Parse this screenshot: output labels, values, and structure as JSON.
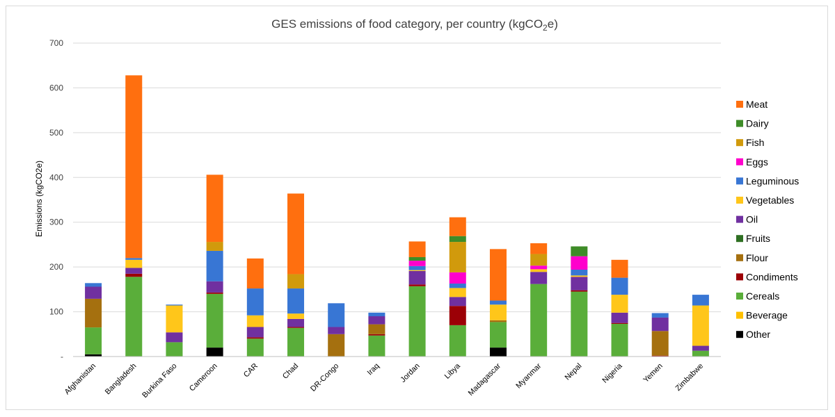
{
  "chart_data": {
    "type": "bar",
    "stacked": true,
    "title": "GES emissions of food category, per country (kgCO",
    "title_sub": "2",
    "title_end": "e)",
    "ylabel": "Emissions (kgCO2e)",
    "xlabel": "",
    "ylim": [
      0,
      700
    ],
    "yticks": [
      0,
      100,
      200,
      300,
      400,
      500,
      600,
      700
    ],
    "ytick_labels": [
      "-",
      "100",
      "200",
      "300",
      "400",
      "500",
      "600",
      "700"
    ],
    "grid": true,
    "legend_position": "right",
    "categories": [
      "Afghanistan",
      "Bangladesh",
      "Burkina Faso",
      "Cameroon",
      "CAR",
      "Chad",
      "DR-Congo",
      "Iraq",
      "Jordan",
      "Libya",
      "Madagascar",
      "Myanmar",
      "Nepal",
      "Nigeria",
      "Yemen",
      "Zimbabwe"
    ],
    "series": [
      {
        "name": "Other",
        "color": "#000000",
        "values": [
          5,
          0,
          0,
          20,
          0,
          0,
          0,
          0,
          0,
          0,
          20,
          0,
          0,
          0,
          0,
          0
        ]
      },
      {
        "name": "Beverage",
        "color": "#FFC000",
        "values": [
          0,
          0,
          0,
          0,
          0,
          0,
          0,
          0,
          0,
          0,
          0,
          0,
          0,
          0,
          0,
          0
        ]
      },
      {
        "name": "Cereals",
        "color": "#5AAE3A",
        "values": [
          60,
          178,
          32,
          120,
          40,
          64,
          0,
          47,
          157,
          70,
          57,
          162,
          145,
          73,
          0,
          13
        ]
      },
      {
        "name": "Condiments",
        "color": "#9C0006",
        "values": [
          0,
          7,
          0,
          3,
          3,
          2,
          0,
          3,
          4,
          43,
          0,
          0,
          3,
          2,
          2,
          0
        ]
      },
      {
        "name": "Flour",
        "color": "#A5700F",
        "values": [
          64,
          0,
          0,
          0,
          0,
          0,
          50,
          22,
          0,
          0,
          4,
          0,
          0,
          0,
          55,
          0
        ]
      },
      {
        "name": "Fruits",
        "color": "#2E6F22",
        "values": [
          0,
          0,
          0,
          0,
          0,
          0,
          0,
          0,
          0,
          0,
          0,
          0,
          0,
          0,
          0,
          0
        ]
      },
      {
        "name": "Oil",
        "color": "#7030A0",
        "values": [
          27,
          13,
          22,
          25,
          23,
          18,
          16,
          18,
          30,
          20,
          0,
          27,
          30,
          23,
          30,
          11
        ]
      },
      {
        "name": "Vegetables",
        "color": "#FFC61A",
        "values": [
          0,
          18,
          60,
          0,
          26,
          12,
          0,
          0,
          2,
          20,
          35,
          6,
          3,
          40,
          0,
          90
        ]
      },
      {
        "name": "Leguminous",
        "color": "#3876D4",
        "values": [
          8,
          4,
          2,
          68,
          60,
          56,
          53,
          8,
          9,
          10,
          9,
          0,
          13,
          38,
          10,
          24
        ]
      },
      {
        "name": "Eggs",
        "color": "#FF00CC",
        "values": [
          0,
          0,
          0,
          0,
          0,
          0,
          0,
          0,
          12,
          25,
          0,
          8,
          30,
          0,
          0,
          0
        ]
      },
      {
        "name": "Fish",
        "color": "#D19A0C",
        "values": [
          0,
          0,
          0,
          20,
          0,
          32,
          0,
          0,
          0,
          68,
          0,
          26,
          0,
          0,
          0,
          0
        ]
      },
      {
        "name": "Dairy",
        "color": "#3E8C28",
        "values": [
          0,
          0,
          0,
          0,
          0,
          0,
          0,
          0,
          8,
          13,
          0,
          0,
          22,
          0,
          0,
          0
        ]
      },
      {
        "name": "Meat",
        "color": "#FF6F0F",
        "values": [
          0,
          408,
          0,
          150,
          67,
          180,
          0,
          0,
          35,
          42,
          115,
          24,
          0,
          40,
          0,
          0
        ]
      }
    ]
  }
}
